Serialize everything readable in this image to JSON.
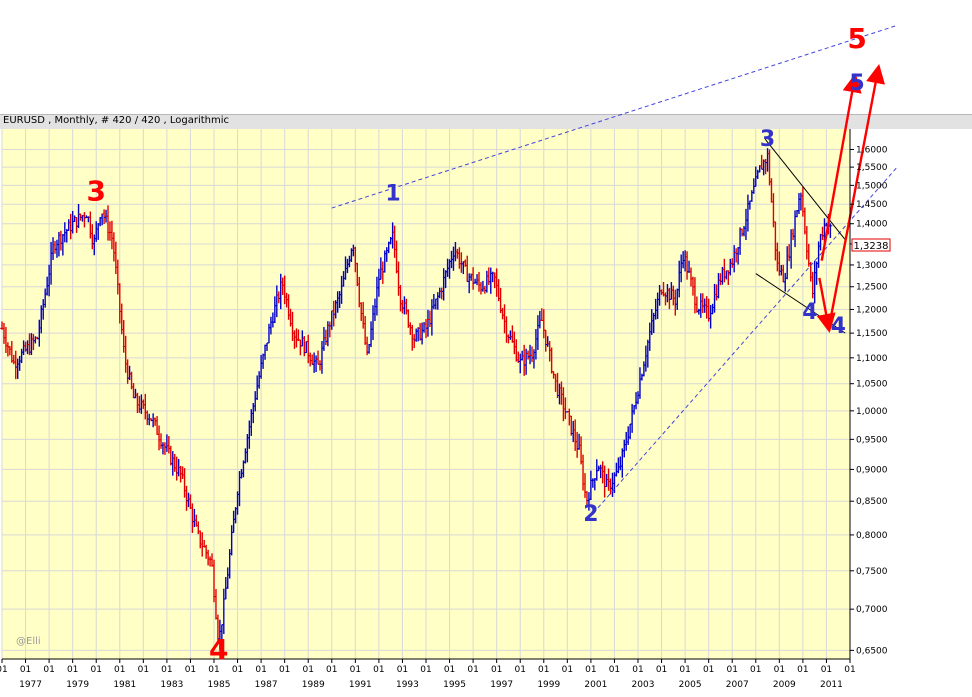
{
  "header": {
    "title": "EURUSD , Monthly, # 420 / 420 , Logarithmic"
  },
  "watermark": "@Elli",
  "colors": {
    "plot_bg": "#ffffc6",
    "grid": "#d8d8d8",
    "bar_up": "#0000c8",
    "bar_down": "#e00000",
    "wave_blue": "#3333cc",
    "wave_red": "#ff0000",
    "trendline_blue": "#4444dd",
    "channel_black": "#000000"
  },
  "chart_data": {
    "type": "ohlc_bar",
    "symbol": "EURUSD",
    "interval": "Monthly",
    "scale": "log",
    "ylim": [
      0.64,
      1.66
    ],
    "xlim": [
      1976.0,
      2012.0
    ],
    "y_ticks": [
      "1,6000",
      "1,5500",
      "1,5000",
      "1,4500",
      "1,4000",
      "1,3500",
      "1,3000",
      "1,2500",
      "1,2000",
      "1,1500",
      "1,1000",
      "1,0500",
      "1,0000",
      "0,9500",
      "0,9000",
      "0,8500",
      "0,8000",
      "0,7500",
      "0,7000",
      "0,6500"
    ],
    "y_tick_values": [
      1.6,
      1.55,
      1.5,
      1.45,
      1.4,
      1.35,
      1.3,
      1.25,
      1.2,
      1.15,
      1.1,
      1.05,
      1.0,
      0.95,
      0.9,
      0.85,
      0.8,
      0.75,
      0.7,
      0.65
    ],
    "x_year_labels": [
      "1977",
      "1979",
      "1981",
      "1983",
      "1985",
      "1987",
      "1989",
      "1991",
      "1993",
      "1995",
      "1997",
      "1999",
      "2001",
      "2003",
      "2005",
      "2007",
      "2009",
      "2011"
    ],
    "x_month_label": "01",
    "current_price": "1,3238",
    "current_price_value": 1.3238,
    "grid": true,
    "path_points": [
      [
        1976.0,
        1.16
      ],
      [
        1976.5,
        1.09
      ],
      [
        1977.5,
        1.14
      ],
      [
        1978.2,
        1.35
      ],
      [
        1979.0,
        1.4
      ],
      [
        1979.6,
        1.43
      ],
      [
        1979.9,
        1.35
      ],
      [
        1980.2,
        1.44
      ],
      [
        1980.7,
        1.36
      ],
      [
        1981.2,
        1.1
      ],
      [
        1981.6,
        1.02
      ],
      [
        1982.3,
        0.99
      ],
      [
        1983.0,
        0.93
      ],
      [
        1983.6,
        0.89
      ],
      [
        1984.3,
        0.8
      ],
      [
        1984.9,
        0.76
      ],
      [
        1985.2,
        0.66
      ],
      [
        1985.4,
        0.7
      ],
      [
        1986.0,
        0.87
      ],
      [
        1986.8,
        1.04
      ],
      [
        1987.4,
        1.17
      ],
      [
        1987.9,
        1.26
      ],
      [
        1988.4,
        1.15
      ],
      [
        1988.9,
        1.12
      ],
      [
        1989.4,
        1.08
      ],
      [
        1989.9,
        1.17
      ],
      [
        1990.4,
        1.24
      ],
      [
        1990.9,
        1.36
      ],
      [
        1991.2,
        1.21
      ],
      [
        1991.5,
        1.1
      ],
      [
        1992.0,
        1.27
      ],
      [
        1992.6,
        1.37
      ],
      [
        1992.9,
        1.23
      ],
      [
        1993.5,
        1.14
      ],
      [
        1994.0,
        1.16
      ],
      [
        1994.6,
        1.24
      ],
      [
        1995.2,
        1.34
      ],
      [
        1995.7,
        1.28
      ],
      [
        1996.3,
        1.25
      ],
      [
        1996.9,
        1.27
      ],
      [
        1997.4,
        1.16
      ],
      [
        1998.0,
        1.09
      ],
      [
        1998.5,
        1.11
      ],
      [
        1998.9,
        1.18
      ],
      [
        1999.5,
        1.05
      ],
      [
        2000.0,
        0.99
      ],
      [
        2000.5,
        0.93
      ],
      [
        2000.8,
        0.85
      ],
      [
        2001.3,
        0.91
      ],
      [
        2001.7,
        0.87
      ],
      [
        2002.2,
        0.9
      ],
      [
        2002.8,
        1.0
      ],
      [
        2003.5,
        1.15
      ],
      [
        2004.0,
        1.25
      ],
      [
        2004.6,
        1.22
      ],
      [
        2004.9,
        1.33
      ],
      [
        2005.5,
        1.21
      ],
      [
        2006.0,
        1.19
      ],
      [
        2006.5,
        1.27
      ],
      [
        2007.0,
        1.31
      ],
      [
        2007.6,
        1.42
      ],
      [
        2008.2,
        1.55
      ],
      [
        2008.5,
        1.58
      ],
      [
        2008.9,
        1.3
      ],
      [
        2009.2,
        1.27
      ],
      [
        2009.9,
        1.49
      ],
      [
        2010.4,
        1.23
      ],
      [
        2010.7,
        1.36
      ],
      [
        2011.0,
        1.41
      ],
      [
        2011.2,
        1.38
      ]
    ],
    "annotations": {
      "blue_waves": [
        {
          "label": "1",
          "x": 1992.6,
          "y": 1.46
        },
        {
          "label": "2",
          "x": 2001.0,
          "y": 0.82
        },
        {
          "label": "3",
          "x": 2008.5,
          "y": 1.61
        },
        {
          "label": "4",
          "x": 2010.3,
          "y": 1.18
        },
        {
          "label": "4",
          "x": 2011.5,
          "y": 1.15
        },
        {
          "label": "5",
          "x": 2012.3,
          "y": 1.78
        }
      ],
      "red_waves": [
        {
          "label": "3",
          "x": 1980.0,
          "y": 1.46
        },
        {
          "label": "4",
          "x": 1985.2,
          "y": 0.64
        },
        {
          "label": "5",
          "x": 2012.3,
          "y": 1.92
        }
      ]
    }
  }
}
